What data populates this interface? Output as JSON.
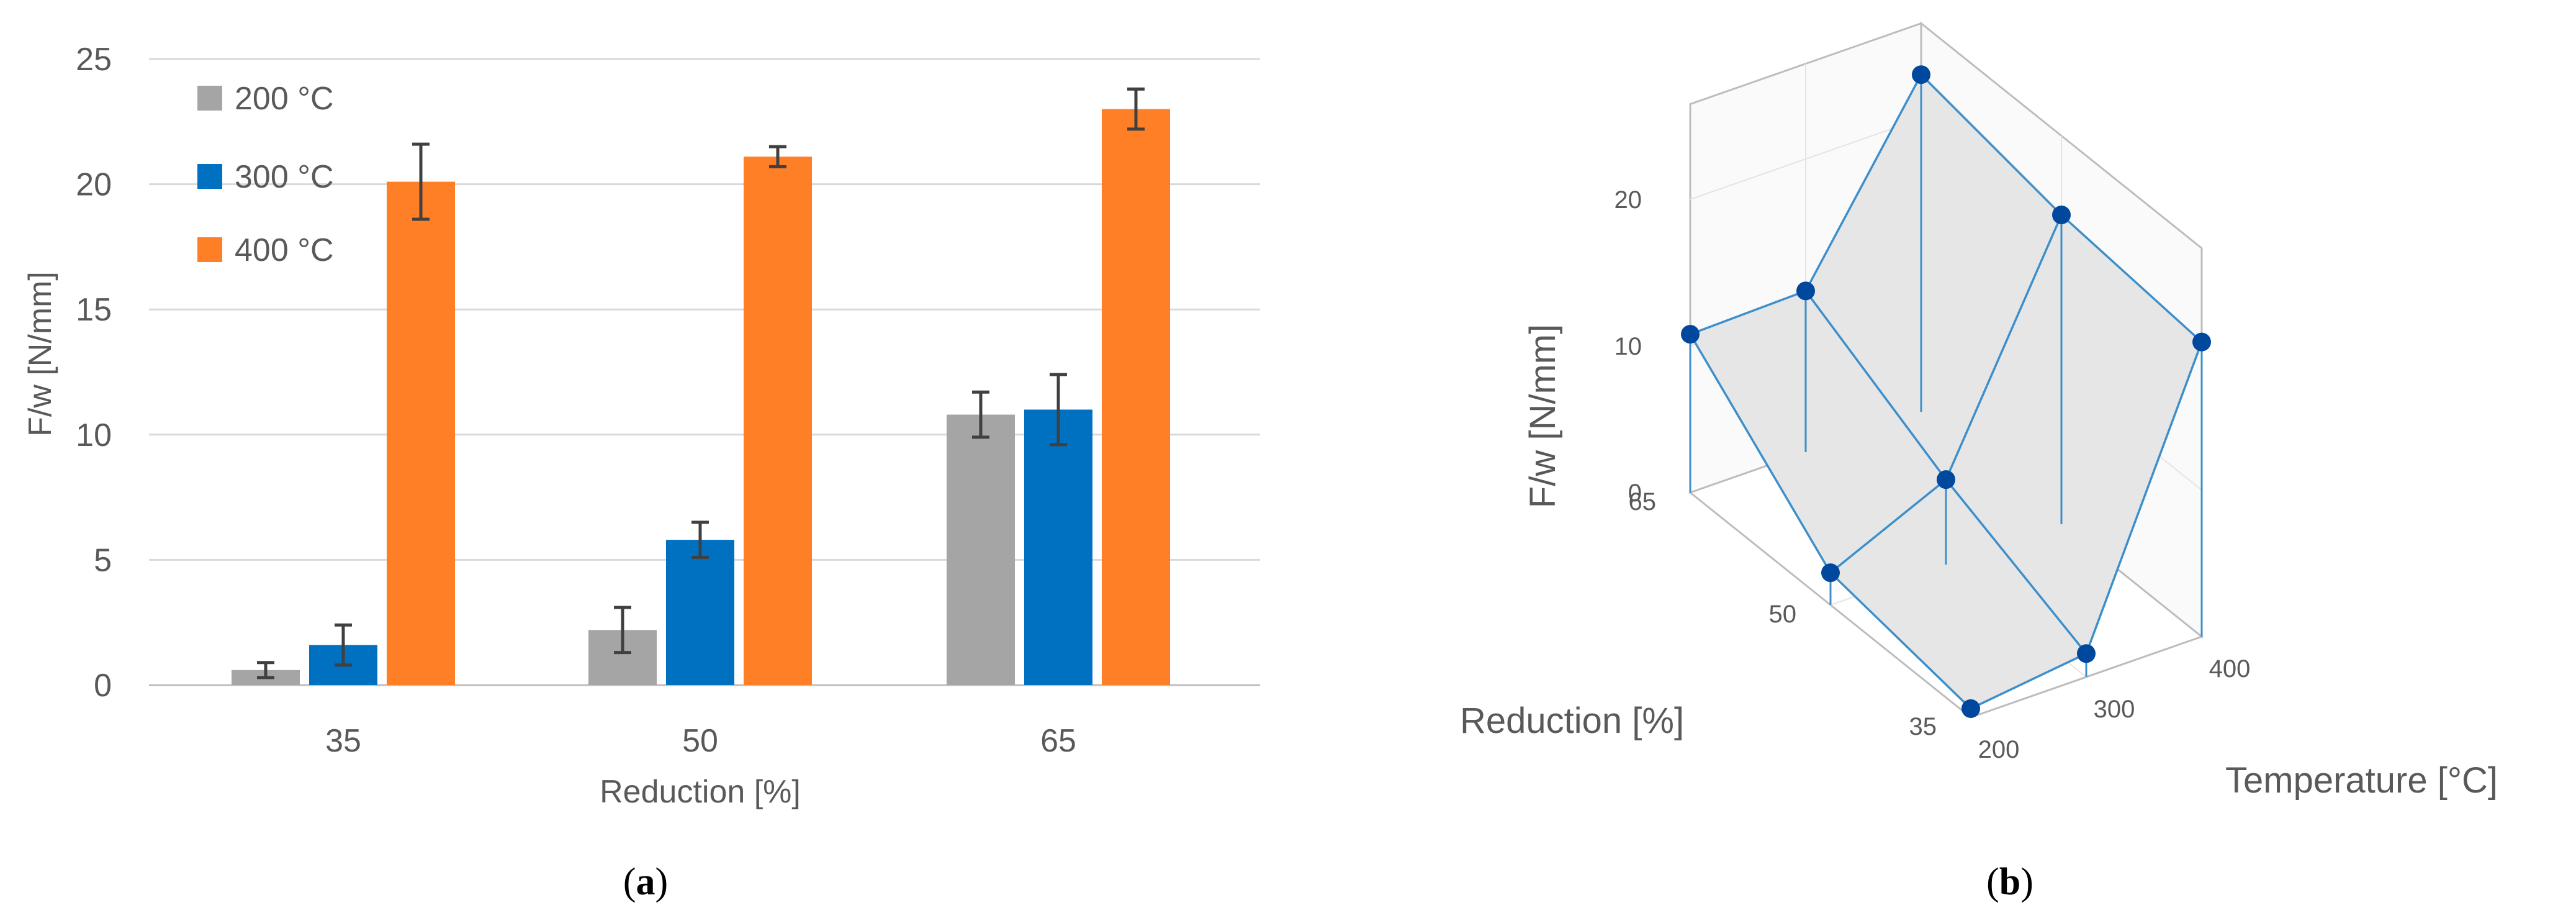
{
  "colors": {
    "s200": "#A5A5A5",
    "s300": "#0070C0",
    "s400": "#FF7F27",
    "grid": "#D9D9D9",
    "axis": "#595959",
    "errorbar": "#404040",
    "surface_fill": "#E6E6E6",
    "surface_edge": "#3C8FCB",
    "marker": "#00479E",
    "box": "#BDBDBD"
  },
  "captions": {
    "a": "a",
    "b": "b"
  },
  "chart_data": [
    {
      "type": "bar",
      "panel": "a",
      "title": "",
      "xlabel": "Reduction [%]",
      "ylabel": "F/w [N/mm]",
      "categories": [
        "35",
        "50",
        "65"
      ],
      "ylim": [
        0,
        25
      ],
      "yticks": [
        "0",
        "5",
        "10",
        "15",
        "20",
        "25"
      ],
      "grid": true,
      "legend_position": "top-left",
      "series": [
        {
          "name": "200 °C",
          "color_key": "s200",
          "values": [
            0.6,
            2.2,
            10.8
          ],
          "errors": [
            0.3,
            0.9,
            0.9
          ]
        },
        {
          "name": "300 °C",
          "color_key": "s300",
          "values": [
            1.6,
            5.8,
            11.0
          ],
          "errors": [
            0.8,
            0.7,
            1.4
          ]
        },
        {
          "name": "400 °C",
          "color_key": "s400",
          "values": [
            20.1,
            21.1,
            23.0
          ],
          "errors": [
            1.5,
            0.4,
            0.8
          ]
        }
      ]
    },
    {
      "type": "surface3d",
      "panel": "b",
      "title": "",
      "xlabel": "Temperature [°C]",
      "ylabel": "Reduction [%]",
      "zlabel": "F/w [N/mm]",
      "x": [
        200,
        300,
        400
      ],
      "y": [
        35,
        50,
        65
      ],
      "x_ticks": [
        "200",
        "300",
        "400"
      ],
      "y_ticks": [
        "35",
        "50",
        "65"
      ],
      "z_ticks": [
        "0",
        "10",
        "20"
      ],
      "zlim": [
        0,
        25
      ],
      "z_by_reduction": [
        [
          0.6,
          1.6,
          20.1
        ],
        [
          2.2,
          5.8,
          21.1
        ],
        [
          10.8,
          11.0,
          23.0
        ]
      ]
    }
  ]
}
